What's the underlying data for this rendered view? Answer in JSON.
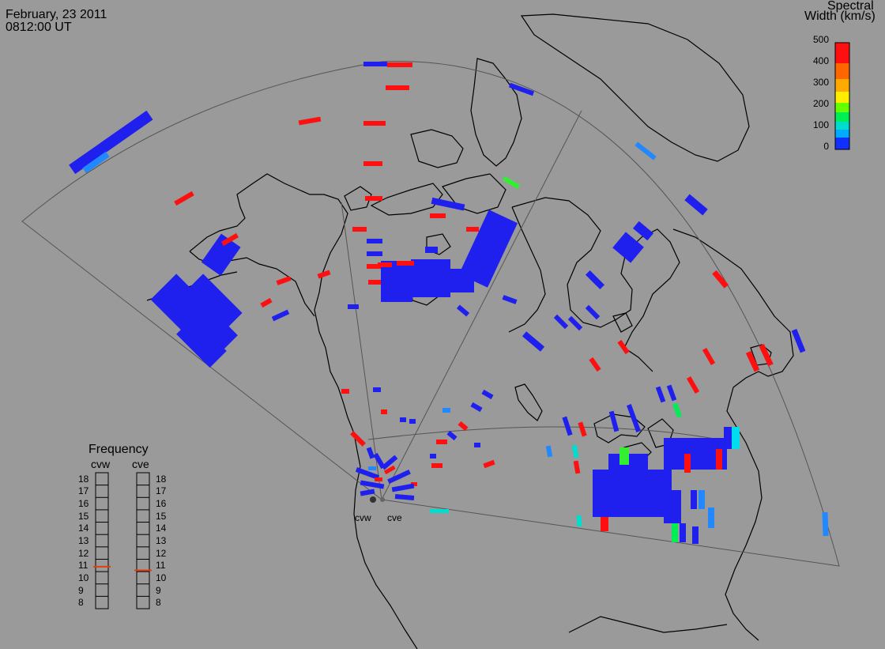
{
  "header": {
    "date": "February, 23 2011",
    "time": "0812:00 UT"
  },
  "legend": {
    "title_line1": "Spectral",
    "title_line2": "Width (km/s)",
    "ticks": [
      "500",
      "400",
      "300",
      "200",
      "100",
      "0"
    ],
    "colors": [
      "#ff0000",
      "#ff4000",
      "#ff9900",
      "#ffee00",
      "#66ff00",
      "#00ee44",
      "#00eeaa",
      "#00ccff",
      "#0066ff",
      "#0000ff"
    ]
  },
  "frequency": {
    "title": "Frequency",
    "stations": [
      "cvw",
      "cve"
    ],
    "levels": [
      "18",
      "17",
      "16",
      "15",
      "14",
      "13",
      "12",
      "11",
      "10",
      "9",
      "8"
    ],
    "cvw_value": 10.9,
    "cve_value": 10.6,
    "marker_color": "#e04010"
  },
  "radars": [
    "cvw",
    "cve"
  ],
  "colors": {
    "background": "#9a9a9a",
    "coast": "#000000",
    "fov": "#555555",
    "blue": "#2020ee",
    "red": "#ff1010",
    "cyan": "#00ddee",
    "green": "#33ee33",
    "lightblue": "#2288ff"
  }
}
